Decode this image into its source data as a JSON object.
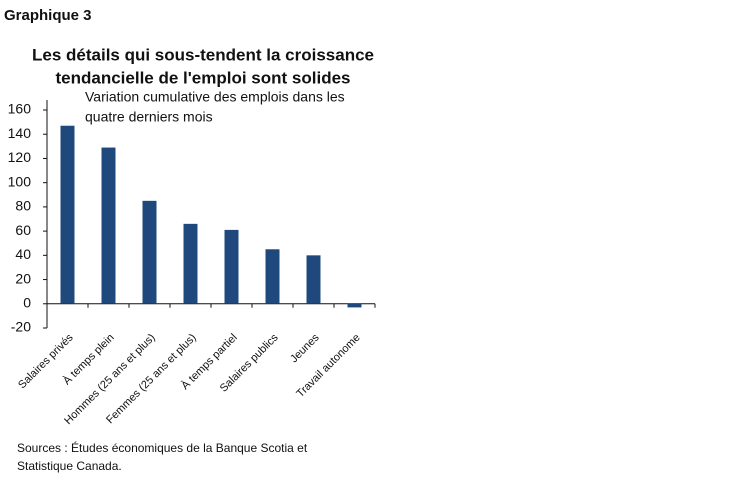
{
  "header": {
    "label": "Graphique 3"
  },
  "chart_data": {
    "type": "bar",
    "title": [
      "Les détails qui sous-tendent la croissance",
      "tendancielle de l'emploi sont solides"
    ],
    "subtitle": [
      "Variation cumulative des emplois dans les",
      "quatre derniers mois"
    ],
    "categories": [
      "Salaires privés",
      "À temps plein",
      "Hommes (25 ans et plus)",
      "Femmes (25 ans et plus)",
      "À temps partiel",
      "Salaires publics",
      "Jeunes",
      "Travail autonome"
    ],
    "values": [
      147,
      129,
      85,
      66,
      61,
      45,
      40,
      -3
    ],
    "color": "#1f497d",
    "ylim": [
      -20,
      160
    ],
    "yticks": [
      -20,
      0,
      20,
      40,
      60,
      80,
      100,
      120,
      140,
      160
    ],
    "grid": false
  },
  "source": [
    "Sources : Études économiques de la Banque Scotia et",
    "Statistique Canada."
  ]
}
